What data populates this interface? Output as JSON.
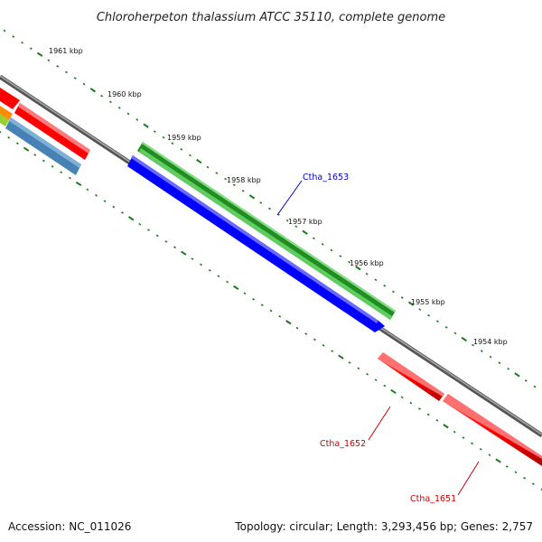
{
  "title": "Chloroherpeton thalassium ATCC 35110, complete genome",
  "scale_labels": [
    "1961 kbp",
    "1960 kbp",
    "1959 kbp",
    "1958 kbp",
    "1957 kbp",
    "1956 kbp",
    "1955 kbp",
    "1954 kbp"
  ],
  "genes": {
    "ctha_1653": {
      "label": "Ctha_1653",
      "color": "#0000cc"
    },
    "ctha_1652": {
      "label": "Ctha_1652",
      "color": "#cc0000"
    },
    "ctha_1651": {
      "label": "Ctha_1651",
      "color": "#cc0000"
    }
  },
  "footer": {
    "accession": "Accession: NC_011026",
    "topology": "Topology: circular; Length: 3,293,456 bp; Genes: 2,757"
  }
}
